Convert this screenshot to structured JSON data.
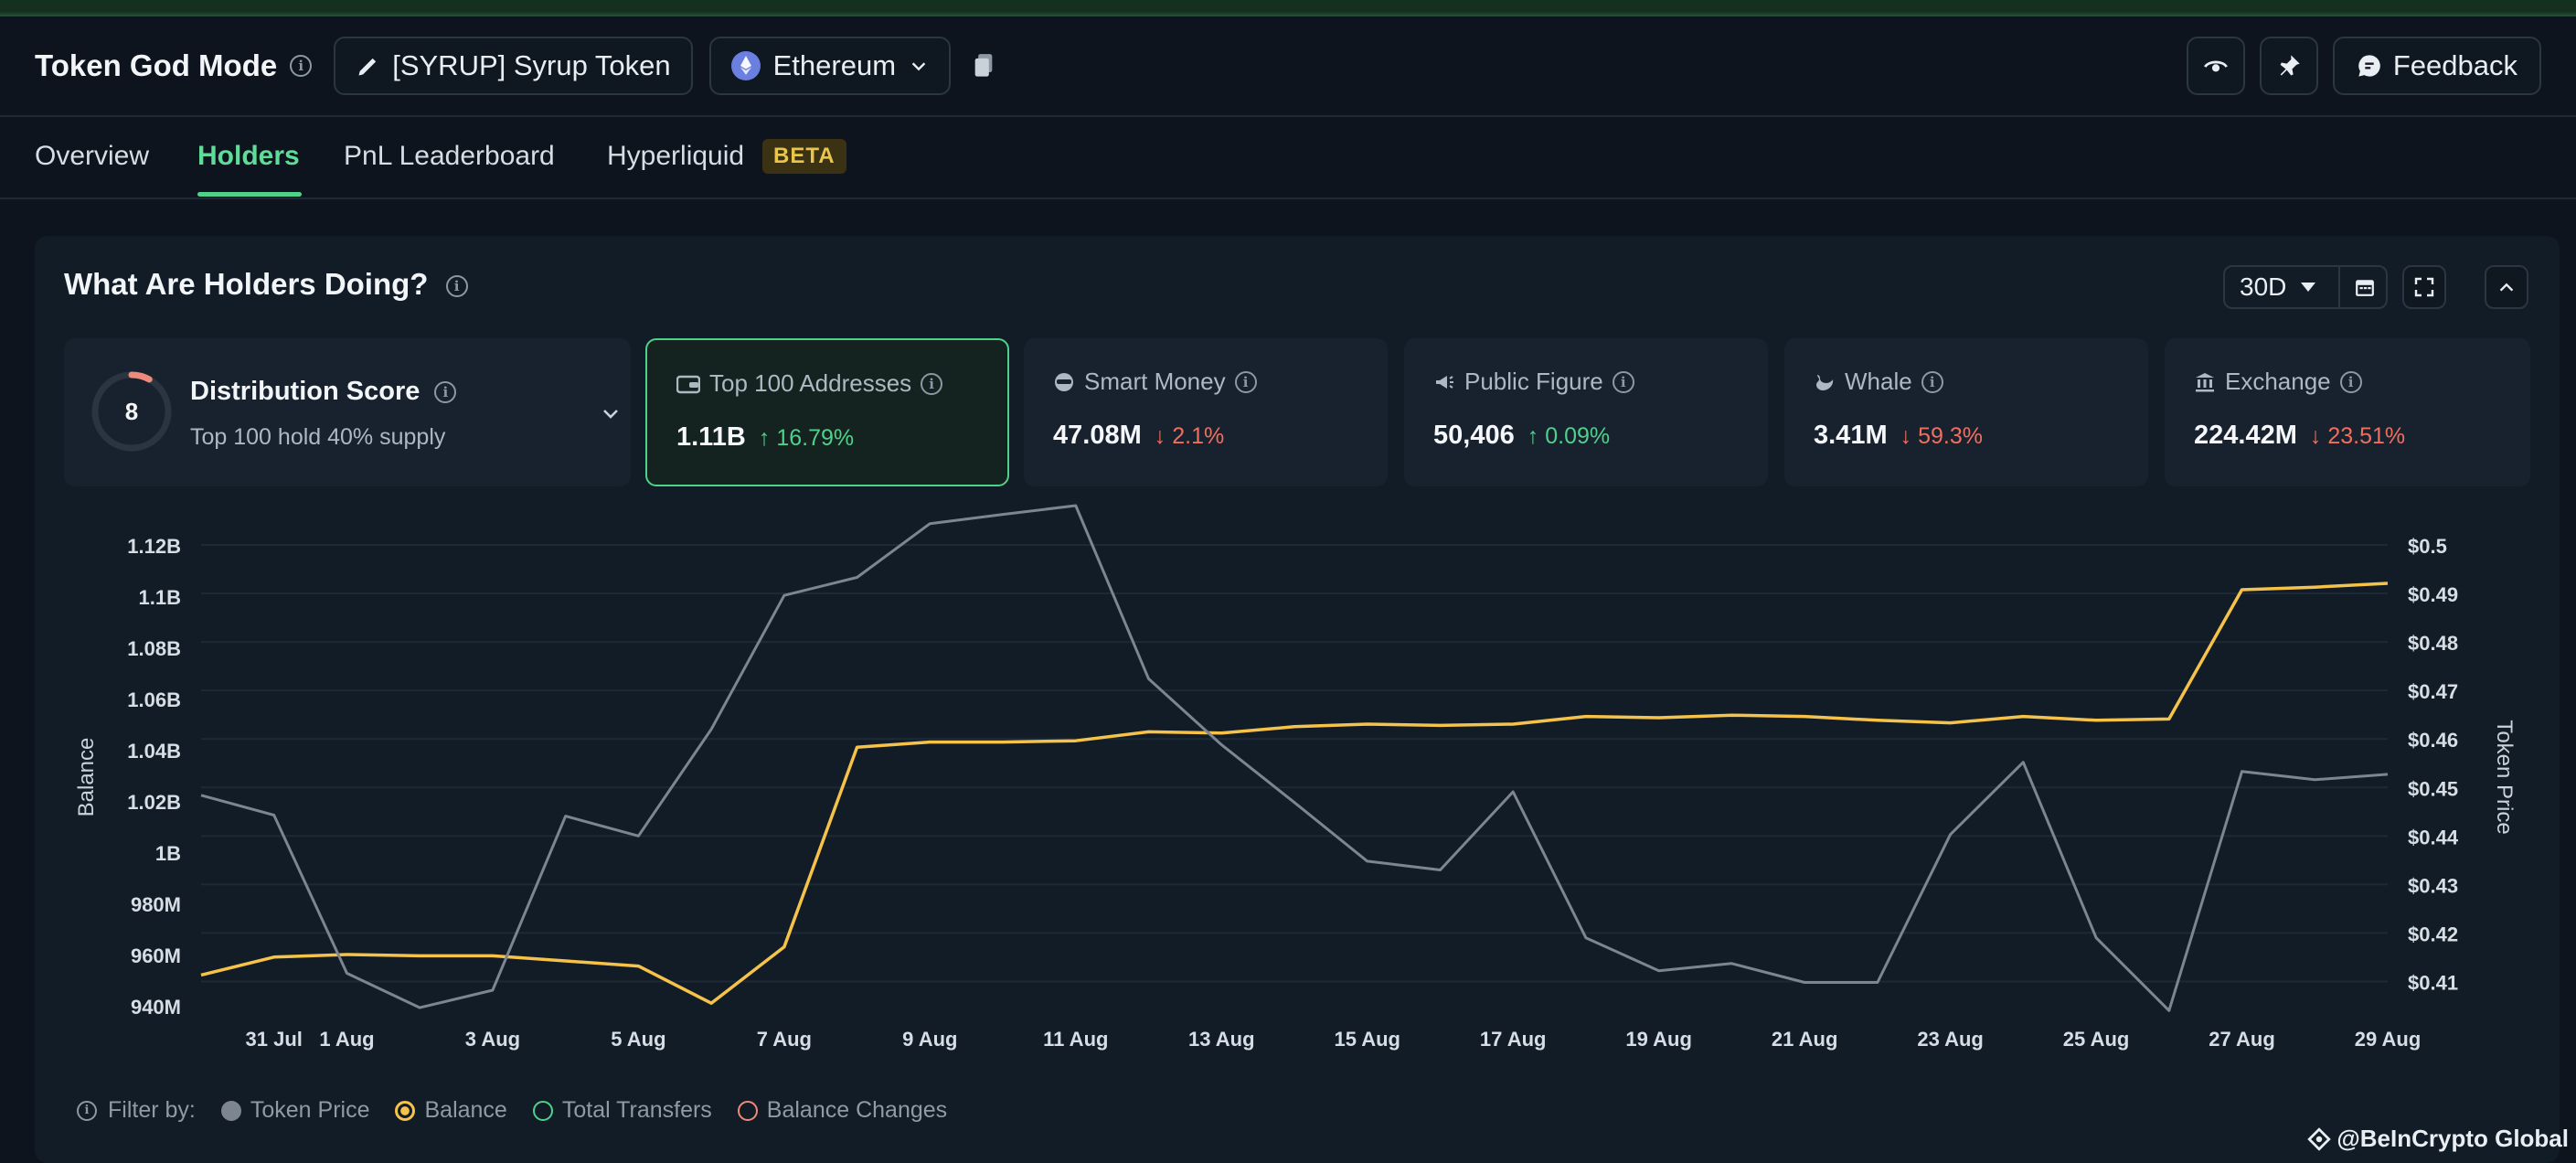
{
  "header": {
    "title": "Token God Mode",
    "token_label": "[SYRUP] Syrup Token",
    "chain_label": "Ethereum",
    "feedback_label": "Feedback"
  },
  "tabs": [
    {
      "label": "Overview",
      "active": false
    },
    {
      "label": "Holders",
      "active": true
    },
    {
      "label": "PnL Leaderboard",
      "active": false
    },
    {
      "label": "Hyperliquid",
      "active": false,
      "badge": "BETA"
    }
  ],
  "panel": {
    "title": "What Are Holders Doing?",
    "range": "30D"
  },
  "distribution": {
    "score": "8",
    "label": "Distribution Score",
    "subtitle": "Top 100 hold 40% supply",
    "score_fraction": 0.08
  },
  "cards": [
    {
      "label": "Top 100 Addresses",
      "value": "1.11B",
      "change": "16.79%",
      "dir": "up",
      "icon": "wallet-icon"
    },
    {
      "label": "Smart Money",
      "value": "47.08M",
      "change": "2.1%",
      "dir": "down",
      "icon": "glasses-icon"
    },
    {
      "label": "Public Figure",
      "value": "50,406",
      "change": "0.09%",
      "dir": "up",
      "icon": "megaphone-icon"
    },
    {
      "label": "Whale",
      "value": "3.41M",
      "change": "59.3%",
      "dir": "down",
      "icon": "whale-icon"
    },
    {
      "label": "Exchange",
      "value": "224.42M",
      "change": "23.51%",
      "dir": "down",
      "icon": "bank-icon"
    }
  ],
  "chart_data": {
    "type": "line",
    "xlabel": "",
    "ylabel": "Balance",
    "y2label": "Token Price",
    "x_ticks": [
      "31 Jul",
      "1 Aug",
      "3 Aug",
      "5 Aug",
      "7 Aug",
      "9 Aug",
      "11 Aug",
      "13 Aug",
      "15 Aug",
      "17 Aug",
      "19 Aug",
      "21 Aug",
      "23 Aug",
      "25 Aug",
      "27 Aug",
      "29 Aug"
    ],
    "y_ticks": [
      "1.12B",
      "1.1B",
      "1.08B",
      "1.06B",
      "1.04B",
      "1.02B",
      "1B",
      "980M",
      "960M",
      "940M"
    ],
    "y2_ticks": [
      "$0.5",
      "$0.49",
      "$0.48",
      "$0.47",
      "$0.46",
      "$0.45",
      "$0.44",
      "$0.43",
      "$0.42",
      "$0.41"
    ],
    "ylim": [
      940,
      1120
    ],
    "y2lim": [
      0.405,
      0.5
    ],
    "dates": [
      "30 Jul",
      "31 Jul",
      "1 Aug",
      "2 Aug",
      "3 Aug",
      "4 Aug",
      "5 Aug",
      "6 Aug",
      "7 Aug",
      "8 Aug",
      "9 Aug",
      "10 Aug",
      "11 Aug",
      "12 Aug",
      "13 Aug",
      "14 Aug",
      "15 Aug",
      "16 Aug",
      "17 Aug",
      "18 Aug",
      "19 Aug",
      "20 Aug",
      "21 Aug",
      "22 Aug",
      "23 Aug",
      "24 Aug",
      "25 Aug",
      "26 Aug",
      "27 Aug",
      "28 Aug",
      "29 Aug"
    ],
    "series": [
      {
        "name": "Balance",
        "axis": "left",
        "color": "#f5c24a",
        "values": [
          952,
          959,
          960,
          959.5,
          959.5,
          957.5,
          955.5,
          941,
          963,
          1041,
          1043,
          1043,
          1043.5,
          1047,
          1046.5,
          1049,
          1050,
          1049.5,
          1050,
          1053,
          1052.5,
          1053.5,
          1053,
          1051.5,
          1050.5,
          1053,
          1051.5,
          1052,
          1102.5,
          1103.5,
          1105
        ]
      },
      {
        "name": "Token Price",
        "axis": "right",
        "color": "#7c8590",
        "values": [
          0.4484,
          0.4443,
          0.4117,
          0.4046,
          0.4082,
          0.4441,
          0.44,
          0.462,
          0.4896,
          0.4933,
          0.5044,
          0.5063,
          0.5081,
          0.4724,
          0.4588,
          0.4469,
          0.4348,
          0.433,
          0.4491,
          0.419,
          0.4122,
          0.4137,
          0.4098,
          0.4098,
          0.4403,
          0.4552,
          0.419,
          0.404,
          0.4533,
          0.4516,
          0.4527
        ]
      }
    ]
  },
  "filters": {
    "label": "Filter by:",
    "items": [
      {
        "label": "Token Price",
        "style": "filled",
        "color": "#7c8590"
      },
      {
        "label": "Balance",
        "style": "ring",
        "color": "#f5c24a"
      },
      {
        "label": "Total Transfers",
        "style": "outline",
        "color": "#4fd18a"
      },
      {
        "label": "Balance Changes",
        "style": "outline",
        "color": "#ef8a7a"
      }
    ]
  },
  "watermark": "@BeInCrypto Global"
}
